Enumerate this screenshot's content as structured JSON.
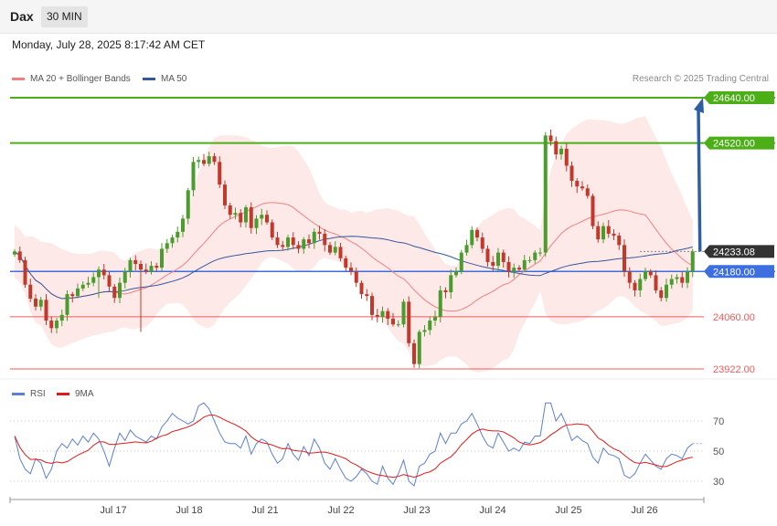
{
  "header": {
    "symbol": "Dax",
    "timeframe": "30 MIN",
    "datetime": "Monday, July 28, 2025 8:17:42 AM CET"
  },
  "legend": {
    "ma20": "MA 20 + Bollinger Bands",
    "ma50": "MA 50",
    "rsi": "RSI",
    "rsi_ma": "9MA",
    "copyright": "Research © 2025 Trading Central"
  },
  "colors": {
    "green_level": "#4caf17",
    "red_level": "#f05a5a",
    "blue_level": "#3d6fe0",
    "current": "#333333",
    "ma20": "#f08080",
    "ma50": "#34589c",
    "band": "#fde2e2",
    "rsi": "#5b7fd6",
    "rsi_ma": "#e01b1b",
    "up": "#4a9c2d",
    "down": "#c0392b",
    "arrow": "#2e5fa3"
  },
  "chart_data": {
    "type": "candlestick",
    "x_ticks": [
      "Jul 17",
      "Jul 18",
      "Jul 21",
      "Jul 22",
      "Jul 23",
      "Jul 24",
      "Jul 25",
      "Jul 26"
    ],
    "y_range": [
      23910,
      24660
    ],
    "levels": [
      {
        "value": 24640.0,
        "label": "24640.00",
        "kind": "resistance"
      },
      {
        "value": 24520.0,
        "label": "24520.00",
        "kind": "resistance"
      },
      {
        "value": 24233.08,
        "label": "24233.08",
        "kind": "current"
      },
      {
        "value": 24180.0,
        "label": "24180.00",
        "kind": "pivot"
      },
      {
        "value": 24060.0,
        "label": "24060.00",
        "kind": "support"
      },
      {
        "value": 23922.0,
        "label": "23922.00",
        "kind": "support"
      }
    ],
    "close": [
      24233,
      24210,
      24145,
      24108,
      24087,
      24105,
      24050,
      24030,
      24050,
      24065,
      24120,
      24115,
      24135,
      24145,
      24150,
      24165,
      24185,
      24170,
      24140,
      24110,
      24150,
      24180,
      24210,
      24200,
      24185,
      24180,
      24195,
      24190,
      24240,
      24255,
      24270,
      24285,
      24320,
      24395,
      24470,
      24475,
      24465,
      24485,
      24470,
      24410,
      24355,
      24330,
      24335,
      24310,
      24350,
      24295,
      24320,
      24330,
      24310,
      24270,
      24250,
      24245,
      24270,
      24250,
      24240,
      24265,
      24255,
      24285,
      24280,
      24250,
      24230,
      24245,
      24215,
      24190,
      24180,
      24150,
      24120,
      24115,
      24065,
      24060,
      24075,
      24055,
      24040,
      24040,
      24100,
      23990,
      23935,
      24020,
      24025,
      24050,
      24060,
      24130,
      24125,
      24170,
      24180,
      24230,
      24250,
      24290,
      24270,
      24240,
      24205,
      24195,
      24230,
      24205,
      24180,
      24190,
      24185,
      24210,
      24210,
      24230,
      24230,
      24540,
      24525,
      24490,
      24505,
      24460,
      24420,
      24405,
      24400,
      24380,
      24300,
      24265,
      24300,
      24280,
      24275,
      24250,
      24180,
      24150,
      24130,
      24160,
      24180,
      24170,
      24130,
      24110,
      24145,
      24160,
      24165,
      24150,
      24180,
      24233
    ],
    "rsi": [
      60,
      45,
      38,
      35,
      45,
      42,
      32,
      38,
      50,
      55,
      52,
      58,
      54,
      60,
      56,
      62,
      58,
      50,
      40,
      52,
      62,
      57,
      64,
      60,
      58,
      56,
      60,
      58,
      66,
      70,
      75,
      72,
      70,
      68,
      70,
      80,
      82,
      78,
      70,
      62,
      56,
      55,
      55,
      52,
      60,
      48,
      55,
      58,
      56,
      48,
      42,
      45,
      55,
      48,
      44,
      53,
      47,
      58,
      52,
      42,
      38,
      45,
      38,
      32,
      30,
      33,
      38,
      35,
      30,
      28,
      40,
      32,
      28,
      35,
      44,
      30,
      27,
      40,
      42,
      48,
      50,
      62,
      55,
      62,
      62,
      68,
      70,
      75,
      68,
      60,
      54,
      52,
      62,
      56,
      50,
      52,
      50,
      56,
      55,
      60,
      60,
      82,
      82,
      70,
      75,
      67,
      57,
      60,
      57,
      55,
      46,
      42,
      52,
      48,
      47,
      45,
      34,
      32,
      35,
      42,
      48,
      44,
      40,
      38,
      45,
      48,
      47,
      45,
      52,
      55
    ],
    "rsi_ticks": [
      70,
      50,
      30
    ]
  }
}
